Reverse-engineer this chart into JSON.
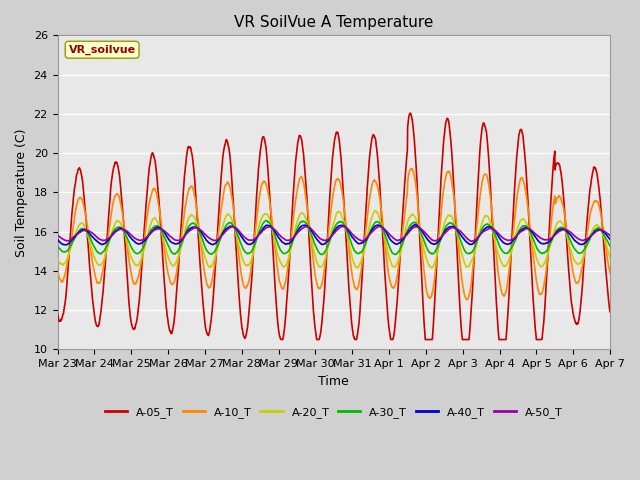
{
  "title": "VR SoilVue A Temperature",
  "xlabel": "Time",
  "ylabel": "Soil Temperature (C)",
  "ylim": [
    10,
    26
  ],
  "yticks": [
    10,
    12,
    14,
    16,
    18,
    20,
    22,
    24,
    26
  ],
  "legend_label": "VR_soilvue",
  "series_labels": [
    "A-05_T",
    "A-10_T",
    "A-20_T",
    "A-30_T",
    "A-40_T",
    "A-50_T"
  ],
  "series_colors": [
    "#cc0000",
    "#ff8800",
    "#cccc00",
    "#00bb00",
    "#0000cc",
    "#9900aa"
  ],
  "x_tick_labels": [
    "Mar 23",
    "Mar 24",
    "Mar 25",
    "Mar 26",
    "Mar 27",
    "Mar 28",
    "Mar 29",
    "Mar 30",
    "Mar 31",
    "Apr 1",
    "Apr 2",
    "Apr 3",
    "Apr 4",
    "Apr 5",
    "Apr 6",
    "Apr 7"
  ],
  "fig_bg_color": "#d0d0d0",
  "plot_bg_color": "#e8e8e8",
  "grid_color": "#ffffff",
  "annotation_bg": "#ffffcc",
  "annotation_border": "#999900",
  "annotation_text_color": "#990000",
  "title_fontsize": 11,
  "axis_label_fontsize": 9,
  "tick_fontsize": 8,
  "legend_fontsize": 8
}
